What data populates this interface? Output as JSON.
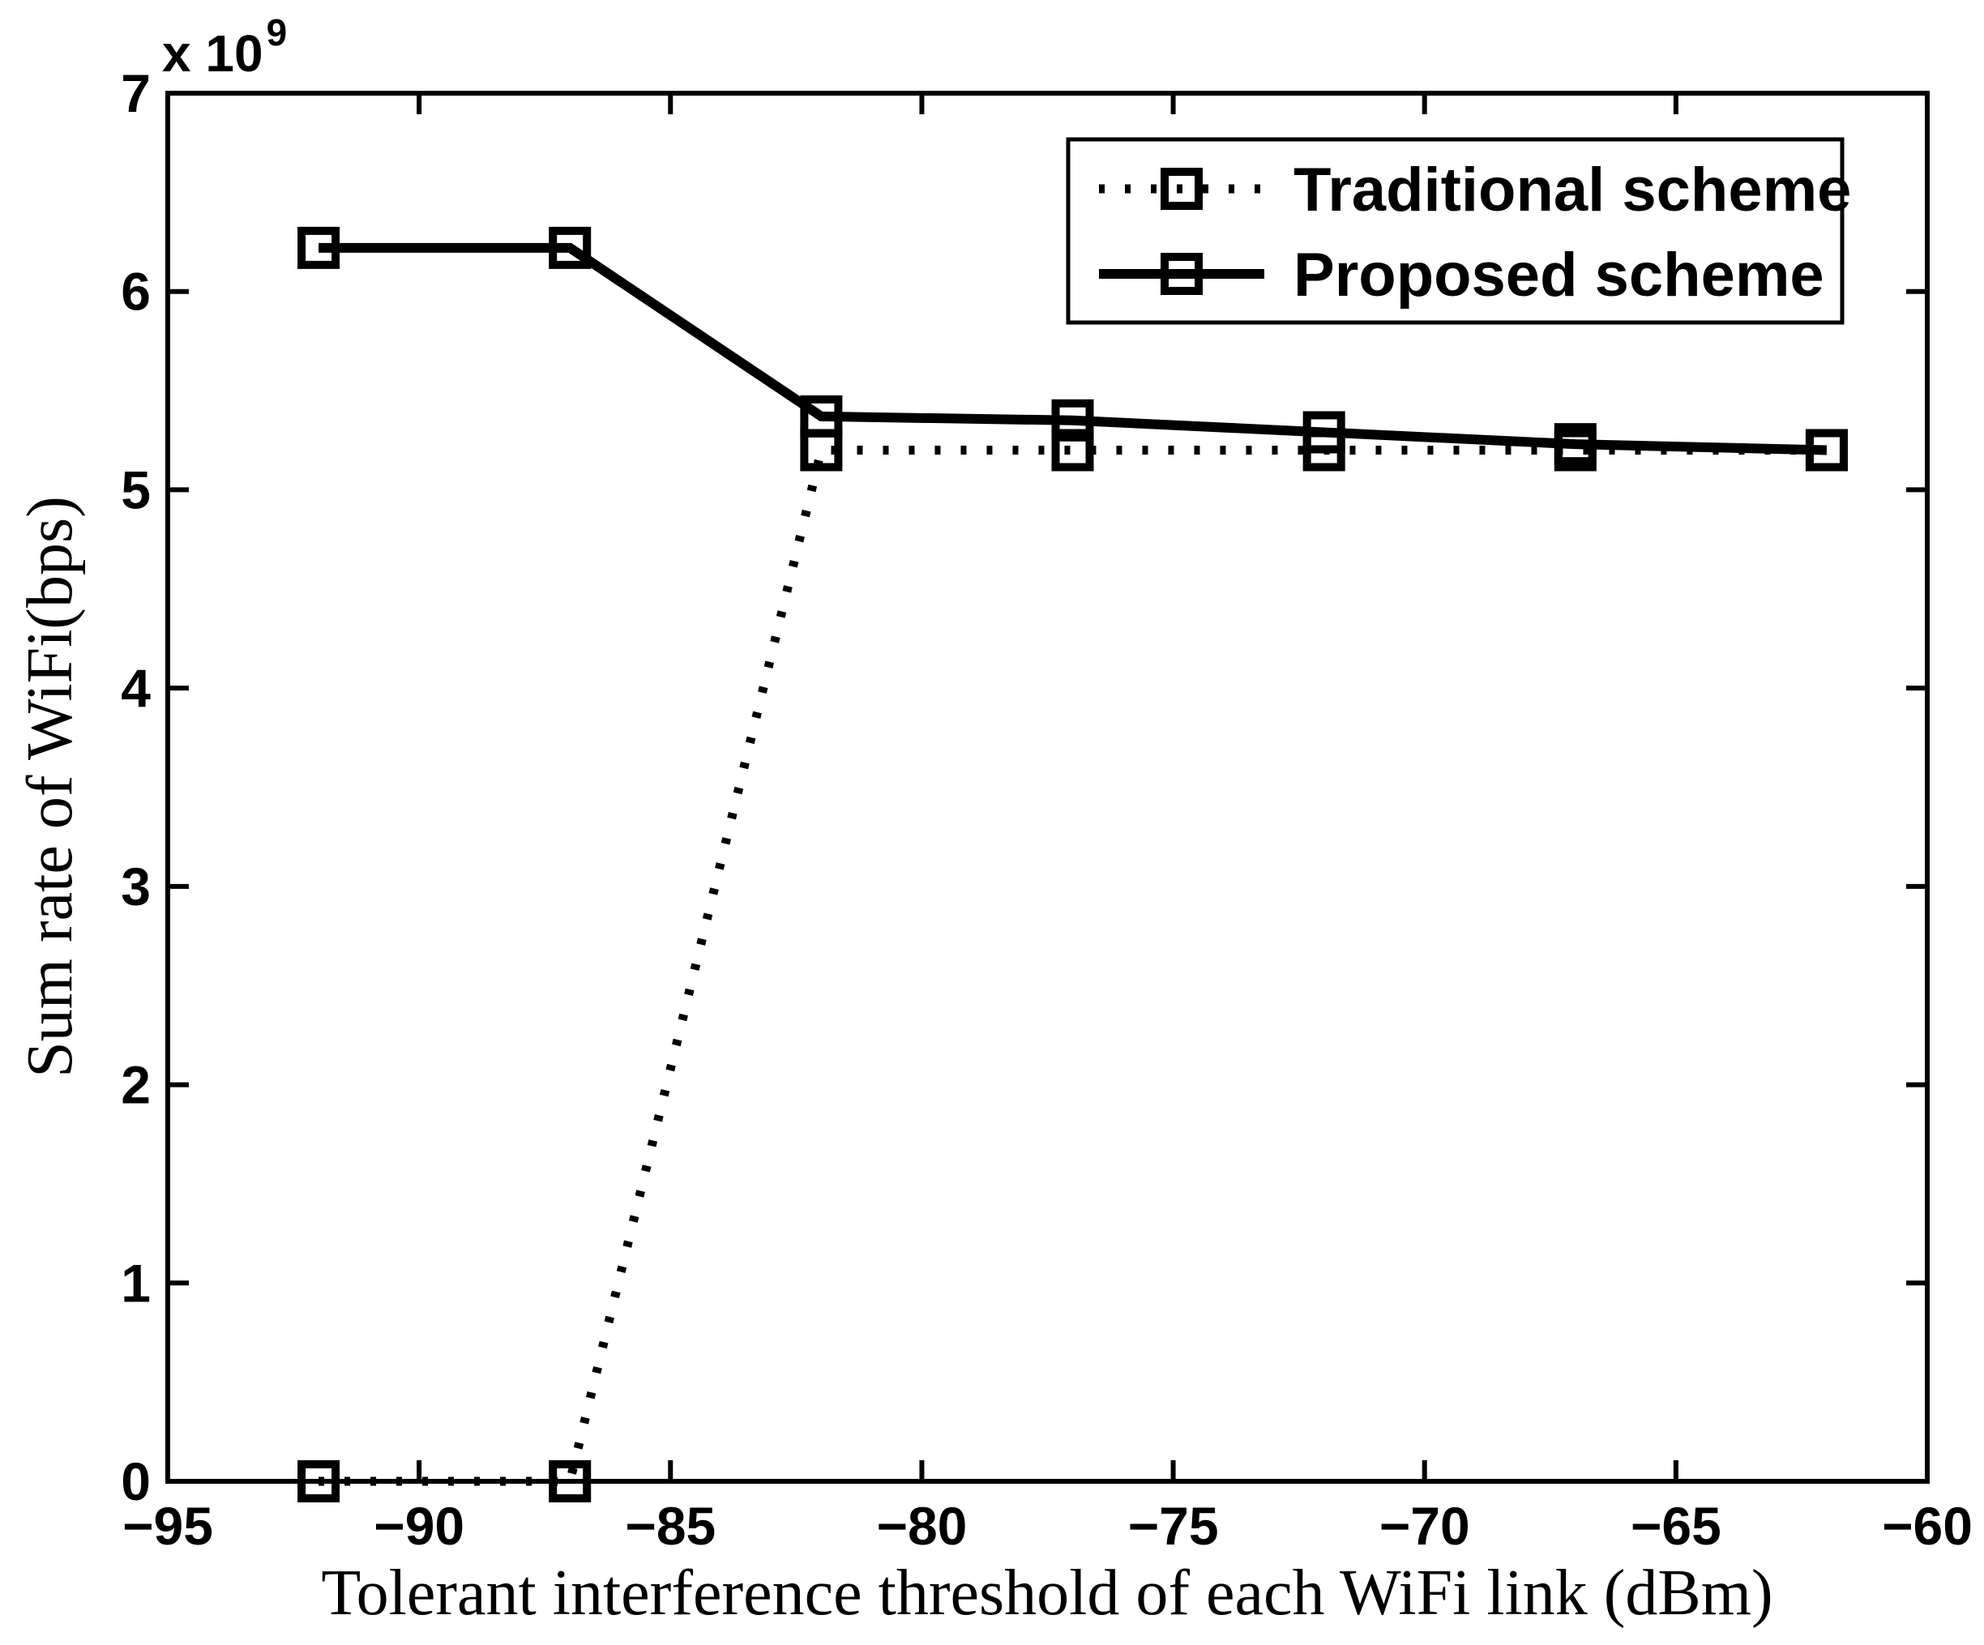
{
  "figure": {
    "background_color": "#ffffff",
    "foreground_color": "#000000"
  },
  "chart_data": {
    "type": "line",
    "title": "",
    "xlabel": "Tolerant interference threshold of each WiFi link (dBm)",
    "ylabel": "Sum rate of WiFi(bps)",
    "y_axis_exponent_label": "x 10",
    "y_axis_exponent_power": "9",
    "xlim": [
      -95,
      -60
    ],
    "ylim": [
      0,
      7000000000
    ],
    "xticks": [
      -95,
      -90,
      -85,
      -80,
      -75,
      -70,
      -65,
      -60
    ],
    "yticks": [
      0,
      1,
      2,
      3,
      4,
      5,
      6,
      7
    ],
    "ytick_scale": 1000000000,
    "grid": false,
    "legend": {
      "position": "top-right-inside",
      "entries": [
        "Traditional scheme",
        "Proposed scheme"
      ]
    },
    "x_dBm": [
      -92,
      -87,
      -82,
      -77,
      -72,
      -67,
      -62
    ],
    "series": [
      {
        "name": "Traditional scheme",
        "line_style": "dotted",
        "marker": "square",
        "color": "#000000",
        "values_bps": [
          0,
          0,
          5200000000,
          5200000000,
          5200000000,
          5200000000,
          5200000000
        ]
      },
      {
        "name": "Proposed scheme",
        "line_style": "solid",
        "marker": "square",
        "color": "#000000",
        "values_bps": [
          6220000000,
          6220000000,
          5370000000,
          5350000000,
          5290000000,
          5230000000,
          5200000000
        ]
      }
    ]
  }
}
